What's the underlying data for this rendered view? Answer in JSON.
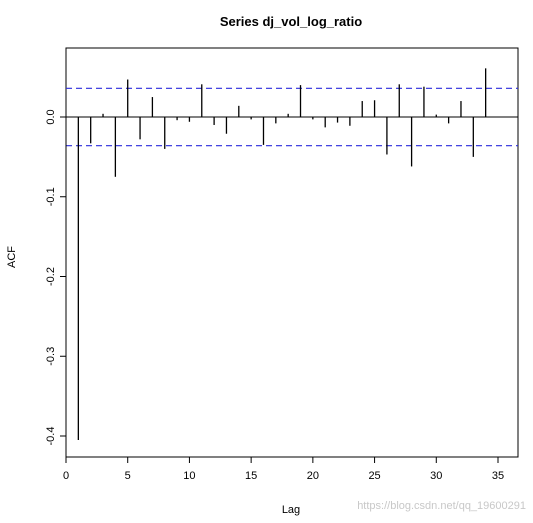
{
  "chart_data": {
    "type": "bar",
    "title": "Series dj_vol_log_ratio",
    "xlabel": "Lag",
    "ylabel": "ACF",
    "xlim": [
      0,
      35
    ],
    "ylim": [
      -0.42,
      0.07
    ],
    "xticks": [
      0,
      5,
      10,
      15,
      20,
      25,
      30,
      35
    ],
    "yticks": [
      -0.4,
      -0.3,
      -0.2,
      -0.1,
      0.0
    ],
    "ytick_labels": [
      "-0.4",
      "-0.3",
      "-0.2",
      "-0.1",
      "0.0"
    ],
    "confidence_bound": 0.036,
    "confidence_color": "#2b2bdc",
    "bar_color": "#000000",
    "lags": [
      1,
      2,
      3,
      4,
      5,
      6,
      7,
      8,
      9,
      10,
      11,
      12,
      13,
      14,
      15,
      16,
      17,
      18,
      19,
      20,
      21,
      22,
      23,
      24,
      25,
      26,
      27,
      28,
      29,
      30,
      31,
      32,
      33,
      34
    ],
    "values": [
      -0.405,
      -0.033,
      0.004,
      -0.075,
      0.047,
      -0.028,
      0.025,
      -0.04,
      -0.004,
      -0.006,
      0.041,
      -0.01,
      -0.021,
      0.014,
      -0.003,
      -0.035,
      -0.008,
      0.004,
      0.04,
      -0.003,
      -0.013,
      -0.007,
      -0.011,
      0.02,
      0.021,
      -0.047,
      0.041,
      -0.062,
      0.038,
      0.003,
      -0.008,
      0.02,
      -0.05,
      0.061
    ]
  },
  "watermark": "https://blog.csdn.net/qq_19600291"
}
